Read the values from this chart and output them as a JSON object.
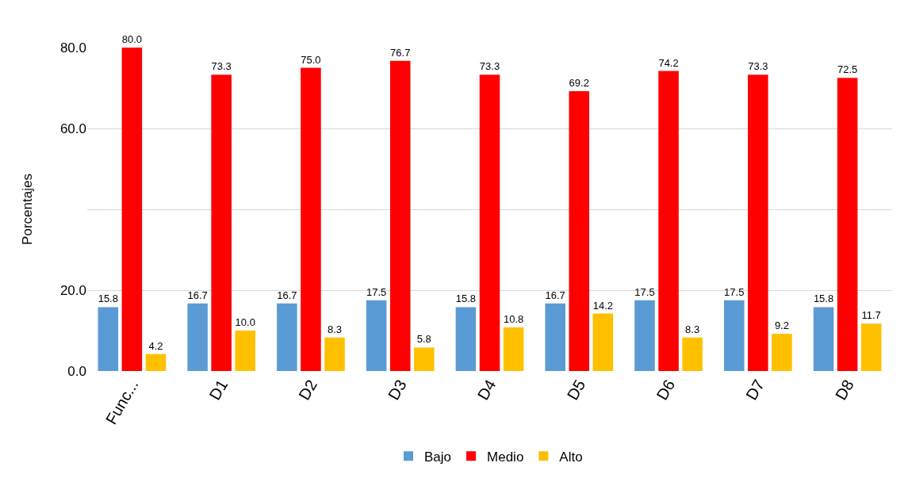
{
  "chart_data": {
    "type": "bar",
    "ylabel": "Porcentajes",
    "categories": [
      "Func...",
      "D1",
      "D2",
      "D3",
      "D4",
      "D5",
      "D6",
      "D7",
      "D8"
    ],
    "series": [
      {
        "name": "Bajo",
        "color": "#5b9bd5",
        "values": [
          15.8,
          16.7,
          16.7,
          17.5,
          15.8,
          16.7,
          17.5,
          17.5,
          15.8
        ],
        "value_labels": [
          "15.8",
          "16.7",
          "16.7",
          "17.5",
          "15.8",
          "16.7",
          "17.5",
          "17.5",
          "15.8"
        ]
      },
      {
        "name": "Medio",
        "color": "#ff0000",
        "values": [
          80.0,
          73.3,
          75.0,
          76.7,
          73.3,
          69.2,
          74.2,
          73.3,
          72.5
        ],
        "value_labels": [
          "80.0",
          "73.3",
          "75.0",
          "76.7",
          "73.3",
          "69.2",
          "74.2",
          "73.3",
          "72.5"
        ]
      },
      {
        "name": "Alto",
        "color": "#ffc000",
        "values": [
          4.2,
          10.0,
          8.3,
          5.8,
          10.8,
          14.2,
          8.3,
          9.2,
          11.7
        ],
        "value_labels": [
          "4.2",
          "10.0",
          "8.3",
          "5.8",
          "10.8",
          "14.2",
          "8.3",
          "9.2",
          "11.7"
        ]
      }
    ],
    "ylim": [
      0,
      80
    ],
    "yticks": [
      {
        "value": 0,
        "label": "0.0"
      },
      {
        "value": 20,
        "label": "20.0"
      },
      {
        "value": 40,
        "label": null
      },
      {
        "value": 60,
        "label": "60.0"
      },
      {
        "value": 80,
        "label": "80.0"
      }
    ],
    "grid": "y",
    "legend": "bottom"
  }
}
